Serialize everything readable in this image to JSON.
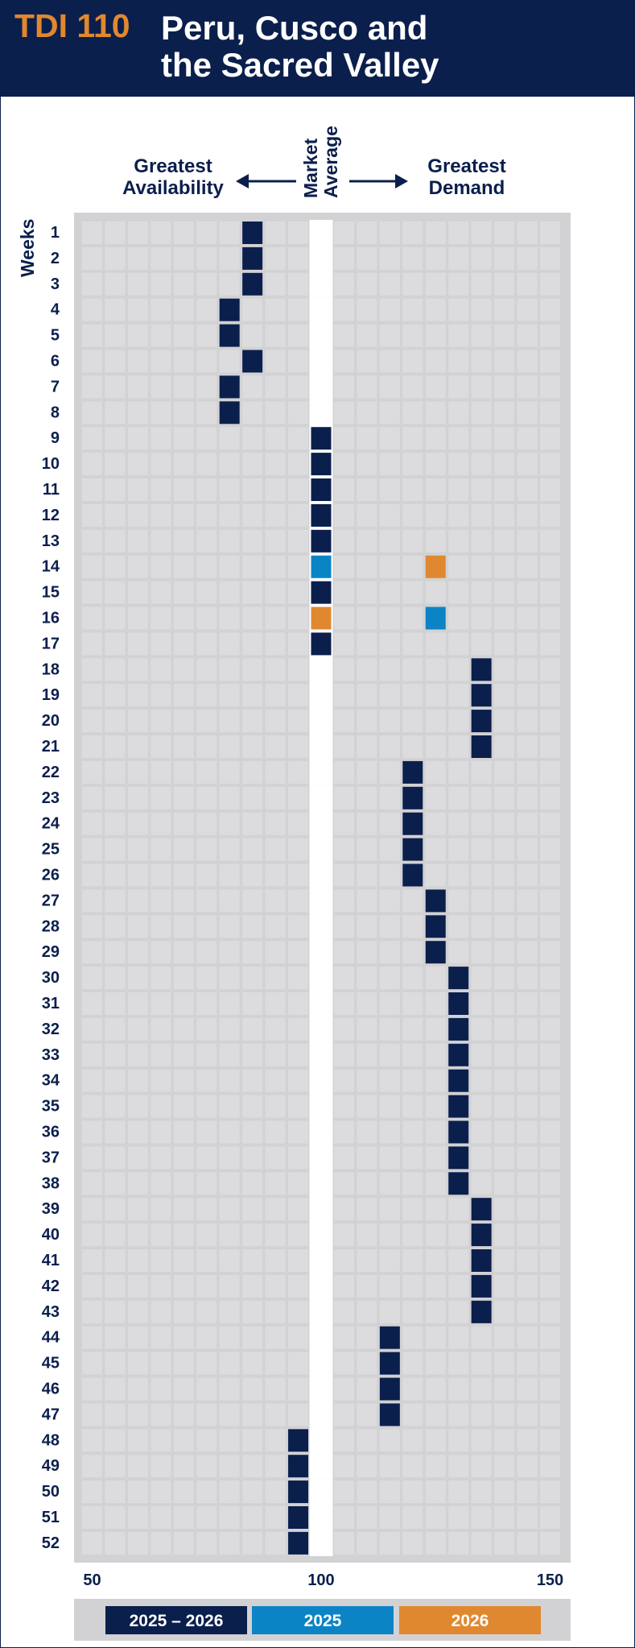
{
  "header": {
    "code": "TDI 110",
    "title_line1": "Peru, Cusco and",
    "title_line2": "the Sacred Valley"
  },
  "labels": {
    "left_line1": "Greatest",
    "left_line2": "Availability",
    "center_line1": "Market",
    "center_line2": "Average",
    "right_line1": "Greatest",
    "right_line2": "Demand",
    "weeks": "Weeks"
  },
  "colors": {
    "header_bg": "#0b1f4d",
    "accent_orange": "#e0882f",
    "series_2025_2026": "#0b1f4d",
    "series_2025": "#0b84c6",
    "series_2026": "#e0882f",
    "cell": "#dcdcde",
    "panel": "#d2d2d4"
  },
  "chart_data": {
    "type": "heatmap",
    "xlabel": "",
    "ylabel": "Weeks",
    "xlim": [
      50,
      150
    ],
    "x_ticks": [
      50,
      100,
      150
    ],
    "grid": true,
    "legend_position": "bottom",
    "weeks": [
      1,
      2,
      3,
      4,
      5,
      6,
      7,
      8,
      9,
      10,
      11,
      12,
      13,
      14,
      15,
      16,
      17,
      18,
      19,
      20,
      21,
      22,
      23,
      24,
      25,
      26,
      27,
      28,
      29,
      30,
      31,
      32,
      33,
      34,
      35,
      36,
      37,
      38,
      39,
      40,
      41,
      42,
      43,
      44,
      45,
      46,
      47,
      48,
      49,
      50,
      51,
      52
    ],
    "series": [
      {
        "name": "2025 – 2026",
        "color": "#0b1f4d",
        "points": [
          {
            "week": 1,
            "value": 85
          },
          {
            "week": 2,
            "value": 85
          },
          {
            "week": 3,
            "value": 85
          },
          {
            "week": 4,
            "value": 80
          },
          {
            "week": 5,
            "value": 80
          },
          {
            "week": 6,
            "value": 85
          },
          {
            "week": 7,
            "value": 80
          },
          {
            "week": 8,
            "value": 80
          },
          {
            "week": 9,
            "value": 100
          },
          {
            "week": 10,
            "value": 100
          },
          {
            "week": 11,
            "value": 100
          },
          {
            "week": 12,
            "value": 100
          },
          {
            "week": 13,
            "value": 100
          },
          {
            "week": 15,
            "value": 100
          },
          {
            "week": 17,
            "value": 100
          },
          {
            "week": 18,
            "value": 135
          },
          {
            "week": 19,
            "value": 135
          },
          {
            "week": 20,
            "value": 135
          },
          {
            "week": 21,
            "value": 135
          },
          {
            "week": 22,
            "value": 120
          },
          {
            "week": 23,
            "value": 120
          },
          {
            "week": 24,
            "value": 120
          },
          {
            "week": 25,
            "value": 120
          },
          {
            "week": 26,
            "value": 120
          },
          {
            "week": 27,
            "value": 125
          },
          {
            "week": 28,
            "value": 125
          },
          {
            "week": 29,
            "value": 125
          },
          {
            "week": 30,
            "value": 130
          },
          {
            "week": 31,
            "value": 130
          },
          {
            "week": 32,
            "value": 130
          },
          {
            "week": 33,
            "value": 130
          },
          {
            "week": 34,
            "value": 130
          },
          {
            "week": 35,
            "value": 130
          },
          {
            "week": 36,
            "value": 130
          },
          {
            "week": 37,
            "value": 130
          },
          {
            "week": 38,
            "value": 130
          },
          {
            "week": 39,
            "value": 135
          },
          {
            "week": 40,
            "value": 135
          },
          {
            "week": 41,
            "value": 135
          },
          {
            "week": 42,
            "value": 135
          },
          {
            "week": 43,
            "value": 135
          },
          {
            "week": 44,
            "value": 115
          },
          {
            "week": 45,
            "value": 115
          },
          {
            "week": 46,
            "value": 115
          },
          {
            "week": 47,
            "value": 115
          },
          {
            "week": 48,
            "value": 95
          },
          {
            "week": 49,
            "value": 95
          },
          {
            "week": 50,
            "value": 95
          },
          {
            "week": 51,
            "value": 95
          },
          {
            "week": 52,
            "value": 95
          }
        ]
      },
      {
        "name": "2025",
        "color": "#0b84c6",
        "points": [
          {
            "week": 14,
            "value": 100
          },
          {
            "week": 16,
            "value": 125
          }
        ]
      },
      {
        "name": "2026",
        "color": "#e0882f",
        "points": [
          {
            "week": 14,
            "value": 125
          },
          {
            "week": 16,
            "value": 100
          }
        ]
      }
    ]
  }
}
